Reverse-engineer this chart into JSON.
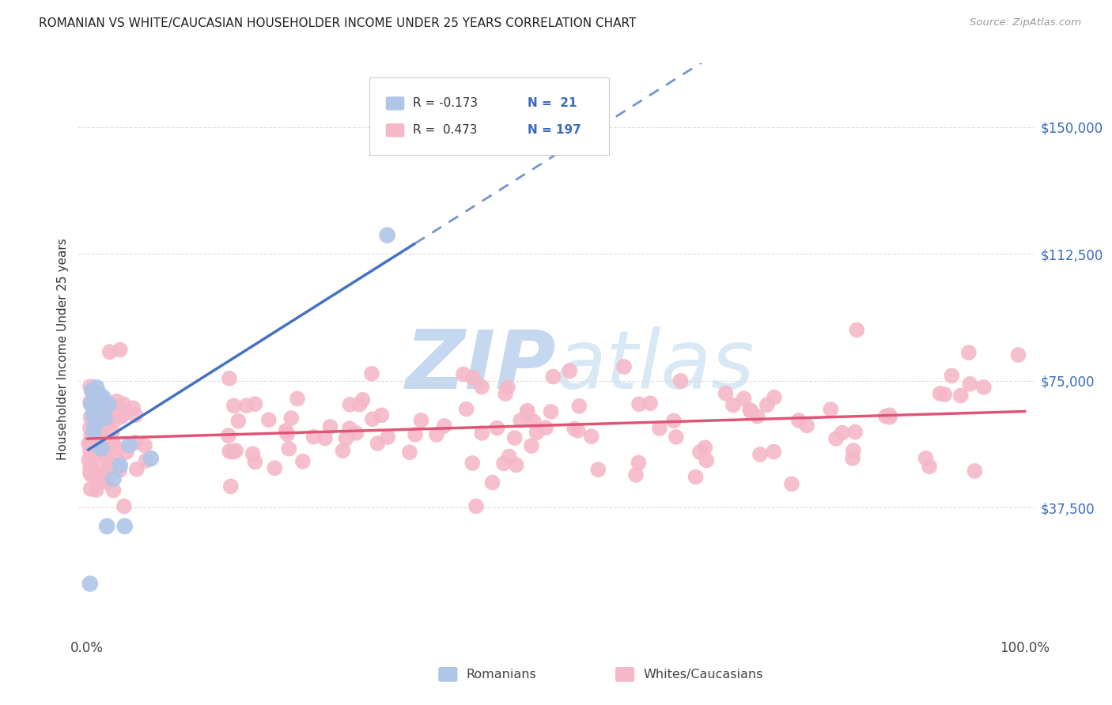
{
  "title": "ROMANIAN VS WHITE/CAUCASIAN HOUSEHOLDER INCOME UNDER 25 YEARS CORRELATION CHART",
  "source": "Source: ZipAtlas.com",
  "ylabel": "Householder Income Under 25 years",
  "ytick_labels": [
    "$37,500",
    "$75,000",
    "$112,500",
    "$150,000"
  ],
  "ytick_values": [
    37500,
    75000,
    112500,
    150000
  ],
  "ymin": 0,
  "ymax": 168750,
  "xmin": -0.01,
  "xmax": 1.01,
  "legend_r1": "R = -0.173",
  "legend_n1": "N =  21",
  "legend_r2": "R =  0.473",
  "legend_n2": "N = 197",
  "romanian_color": "#aec6e8",
  "romanian_edge": "#aec6e8",
  "caucasian_color": "#f5b8c8",
  "caucasian_edge": "#f5b8c8",
  "reg_romanian_color": "#4472c4",
  "reg_caucasian_color": "#e05575",
  "watermark_zip": "ZIP",
  "watermark_atlas": "atlas",
  "watermark_color": "#dce8f5",
  "background_color": "#ffffff",
  "grid_color": "#dddddd"
}
